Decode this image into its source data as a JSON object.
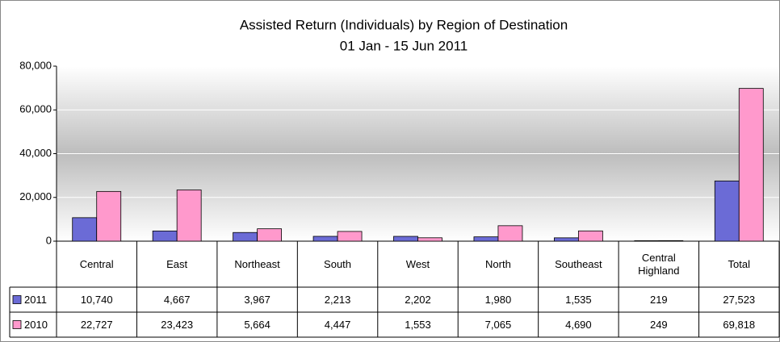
{
  "chart_data": {
    "type": "bar",
    "title": "Assisted Return (Individuals) by Region of Destination",
    "subtitle": "01 Jan - 15 Jun 2011",
    "categories": [
      "Central",
      "East",
      "Northeast",
      "South",
      "West",
      "North",
      "Southeast",
      "Central Highland",
      "Total"
    ],
    "series": [
      {
        "name": "2011",
        "color": "#6b6bd6",
        "values": [
          10740,
          4667,
          3967,
          2213,
          2202,
          1980,
          1535,
          219,
          27523
        ],
        "value_labels": [
          "10,740",
          "4,667",
          "3,967",
          "2,213",
          "2,202",
          "1,980",
          "1,535",
          "219",
          "27,523"
        ]
      },
      {
        "name": "2010",
        "color": "#ff99cc",
        "values": [
          22727,
          23423,
          5664,
          4447,
          1553,
          7065,
          4690,
          249,
          69818
        ],
        "value_labels": [
          "22,727",
          "23,423",
          "5,664",
          "4,447",
          "1,553",
          "7,065",
          "4,690",
          "249",
          "69,818"
        ]
      }
    ],
    "ylim": [
      0,
      80000
    ],
    "yticks": [
      0,
      {
        "value": 20000,
        "label": "20,000"
      },
      {
        "value": 40000,
        "label": "40,000"
      },
      {
        "value": 60000,
        "label": "60,000"
      },
      {
        "value": 80000,
        "label": "80,000"
      }
    ],
    "grid": true
  }
}
